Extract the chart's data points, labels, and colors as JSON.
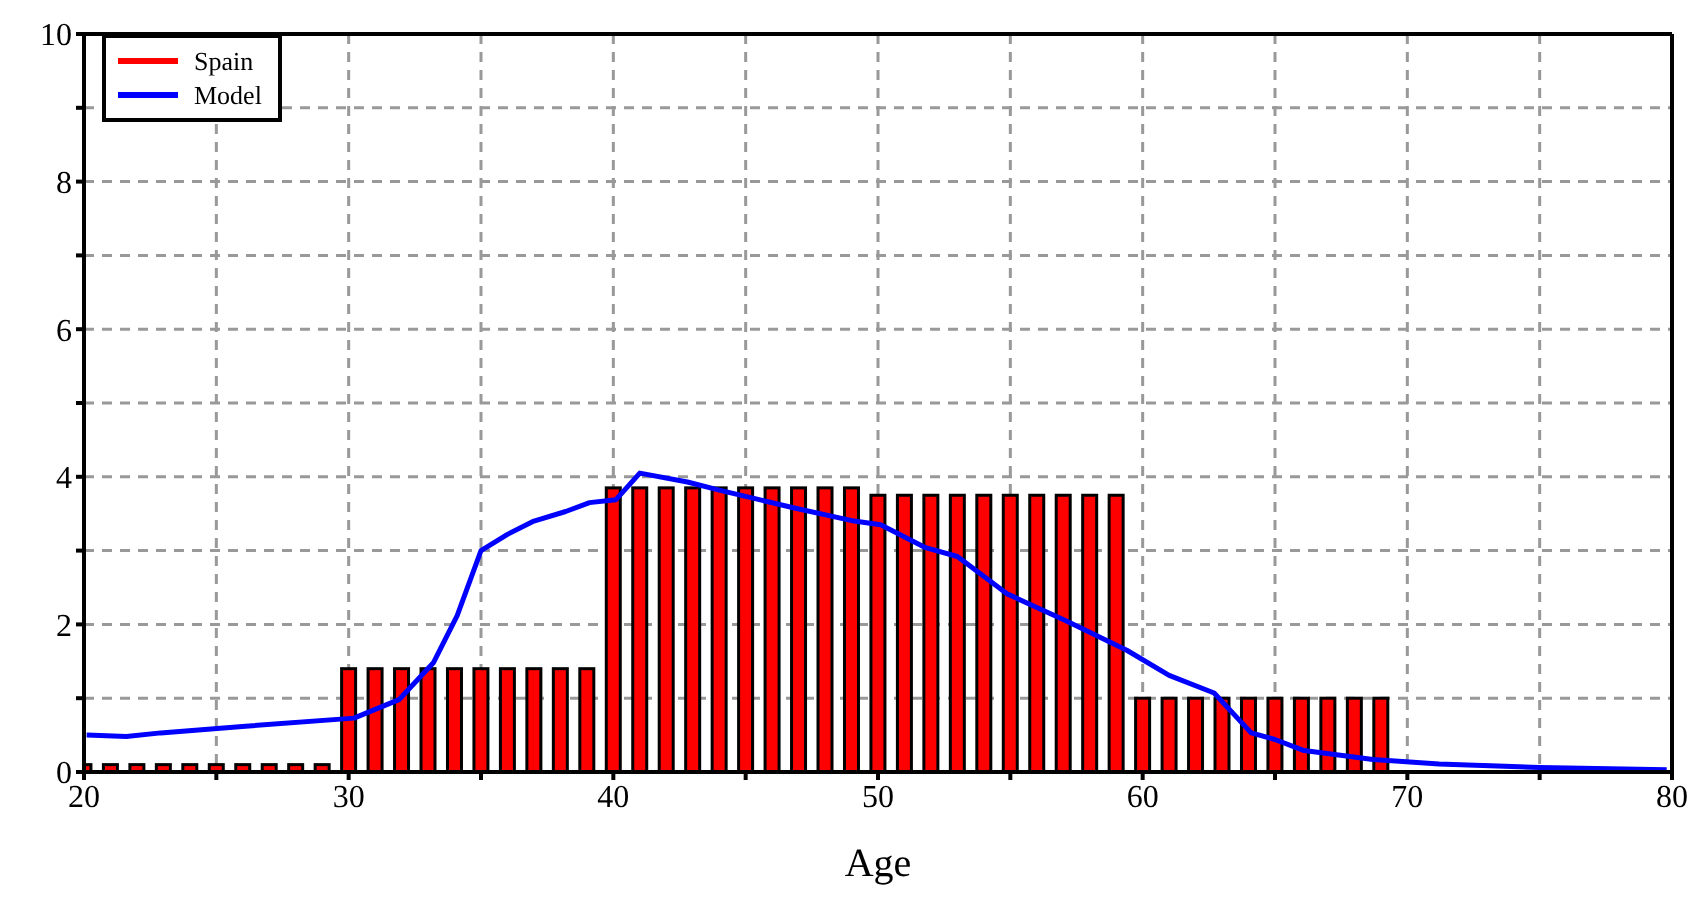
{
  "chart_data": {
    "type": "bar",
    "xlabel": "Age",
    "x": [
      20,
      21,
      22,
      23,
      24,
      25,
      26,
      27,
      28,
      29,
      30,
      31,
      32,
      33,
      34,
      35,
      36,
      37,
      38,
      39,
      40,
      41,
      42,
      43,
      44,
      45,
      46,
      47,
      48,
      49,
      50,
      51,
      52,
      53,
      54,
      55,
      56,
      57,
      58,
      59,
      60,
      61,
      62,
      63,
      64,
      65,
      66,
      67,
      68,
      69
    ],
    "series": [
      {
        "name": "Spain",
        "color": "#ff0000",
        "values": [
          0.1,
          0.1,
          0.1,
          0.1,
          0.1,
          0.1,
          0.1,
          0.1,
          0.1,
          0.1,
          1.4,
          1.4,
          1.4,
          1.4,
          1.4,
          1.4,
          1.4,
          1.4,
          1.4,
          1.4,
          3.85,
          3.85,
          3.85,
          3.85,
          3.85,
          3.85,
          3.85,
          3.85,
          3.85,
          3.85,
          3.75,
          3.75,
          3.75,
          3.75,
          3.75,
          3.75,
          3.75,
          3.75,
          3.75,
          3.75,
          1.0,
          1.0,
          1.0,
          1.0,
          1.0,
          1.0,
          1.0,
          1.0,
          1.0,
          1.0
        ]
      },
      {
        "name": "Model",
        "type": "line",
        "color": "#0000ff",
        "x": [
          20.1,
          21.6,
          22.9,
          26.1,
          30.2,
          31.9,
          33.2,
          34.1,
          35,
          36,
          37,
          38.2,
          39.1,
          40.1,
          41,
          42.8,
          44,
          46.8,
          49.1,
          50.1,
          51.8,
          53,
          54.9,
          57.1,
          59.4,
          61,
          62.7,
          64.1,
          65,
          66.1,
          68.7,
          71.2,
          75,
          79.8
        ],
        "values": [
          0.5,
          0.48,
          0.53,
          0.62,
          0.73,
          0.98,
          1.48,
          2.12,
          3,
          3.22,
          3.4,
          3.53,
          3.65,
          3.69,
          4.05,
          3.93,
          3.82,
          3.58,
          3.4,
          3.35,
          3.04,
          2.92,
          2.41,
          2.05,
          1.65,
          1.31,
          1.07,
          0.53,
          0.44,
          0.29,
          0.17,
          0.11,
          0.06,
          0.03
        ]
      }
    ],
    "xlim": [
      20,
      80
    ],
    "xticks": [
      20,
      {
        "value": 25,
        "label": null
      },
      30,
      {
        "value": 35,
        "label": null
      },
      40,
      {
        "value": 45,
        "label": null
      },
      50,
      {
        "value": 55,
        "label": null
      },
      60,
      {
        "value": 65,
        "label": null
      },
      70,
      {
        "value": 75,
        "label": null
      },
      80
    ],
    "ylim": [
      0,
      10
    ],
    "yticks": [
      0,
      {
        "value": 1,
        "label": null
      },
      2,
      {
        "value": 3,
        "label": null
      },
      4,
      {
        "value": 5,
        "label": null
      },
      6,
      {
        "value": 7,
        "label": null
      },
      8,
      {
        "value": 9,
        "label": null
      },
      10
    ],
    "grid": true,
    "legend": "top left",
    "line_style": "solid",
    "marker": "none"
  }
}
